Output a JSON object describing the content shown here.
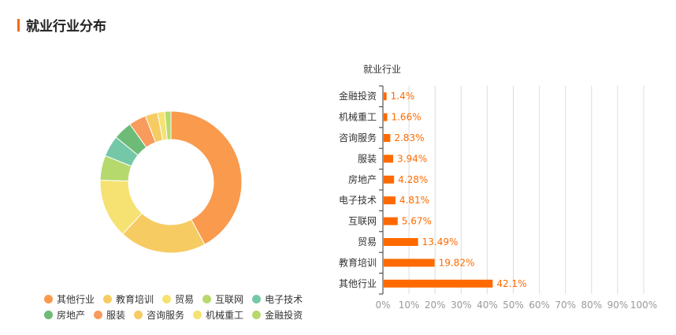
{
  "page": {
    "title": "就业行业分布"
  },
  "chart_data": [
    {
      "type": "pie",
      "variant": "donut",
      "categories": [
        "其他行业",
        "教育培训",
        "贸易",
        "互联网",
        "电子技术",
        "房地产",
        "服装",
        "咨询服务",
        "机械重工",
        "金融投资"
      ],
      "values": [
        42.1,
        19.82,
        13.49,
        5.67,
        4.81,
        4.28,
        3.94,
        2.83,
        1.66,
        1.4
      ],
      "colors": [
        "#f99a4d",
        "#f6cb62",
        "#f6e272",
        "#b6d96e",
        "#75c8a7",
        "#6dbb77",
        "#f89b5c",
        "#f6cb62",
        "#f6e272",
        "#b6d96e"
      ],
      "legend_position": "bottom"
    },
    {
      "type": "bar",
      "orientation": "horizontal",
      "title": "就业行业",
      "categories": [
        "其他行业",
        "教育培训",
        "贸易",
        "互联网",
        "电子技术",
        "房地产",
        "服装",
        "咨询服务",
        "机械重工",
        "金融投资"
      ],
      "values": [
        42.1,
        19.82,
        13.49,
        5.67,
        4.81,
        4.28,
        3.94,
        2.83,
        1.66,
        1.4
      ],
      "data_labels": [
        "42.1%",
        "19.82%",
        "13.49%",
        "5.67%",
        "4.81%",
        "4.28%",
        "3.94%",
        "2.83%",
        "1.66%",
        "1.4%"
      ],
      "xlim": [
        0,
        100
      ],
      "x_ticks": [
        "0%",
        "10%",
        "20%",
        "30%",
        "40%",
        "50%",
        "60%",
        "70%",
        "80%",
        "90%",
        "100%"
      ],
      "bar_color": "#ff6a00",
      "label_color": "#ff6a00",
      "grid": true
    }
  ]
}
